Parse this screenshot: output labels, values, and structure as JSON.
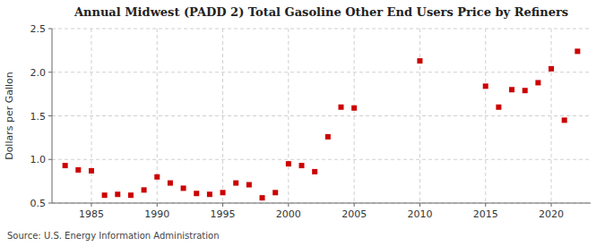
{
  "chart_data": {
    "type": "scatter",
    "title": "Annual Midwest (PADD 2) Total Gasoline Other End Users Price by Refiners",
    "y_label": "Dollars per Gallon",
    "annotations": [
      "Source: U.S. Energy Information Administration"
    ],
    "x": [
      1983,
      1984,
      1985,
      1986,
      1987,
      1988,
      1989,
      1990,
      1991,
      1992,
      1993,
      1994,
      1995,
      1996,
      1997,
      1998,
      1999,
      2000,
      2001,
      2002,
      2003,
      2004,
      2005,
      2010,
      2015,
      2016,
      2017,
      2018,
      2019,
      2020,
      2021,
      2022
    ],
    "values": [
      0.93,
      0.88,
      0.87,
      0.59,
      0.6,
      0.59,
      0.65,
      0.8,
      0.73,
      0.67,
      0.61,
      0.6,
      0.62,
      0.73,
      0.71,
      0.56,
      0.62,
      0.95,
      0.93,
      0.86,
      1.26,
      1.6,
      1.59,
      2.13,
      1.84,
      1.6,
      1.8,
      1.79,
      1.88,
      2.04,
      1.45,
      2.24
    ],
    "color": "#cc0000",
    "marker": "square",
    "xlim": [
      1982,
      2023
    ],
    "ylim": [
      0.5,
      2.5
    ],
    "xticks": [
      1985,
      1990,
      1995,
      2000,
      2005,
      2010,
      2015,
      2020
    ],
    "yticks": [
      0.5,
      {
        "value": 1.0,
        "label": "1.0"
      },
      1.5,
      {
        "value": 2.0,
        "label": "2.0"
      },
      2.5
    ],
    "grid": true
  }
}
